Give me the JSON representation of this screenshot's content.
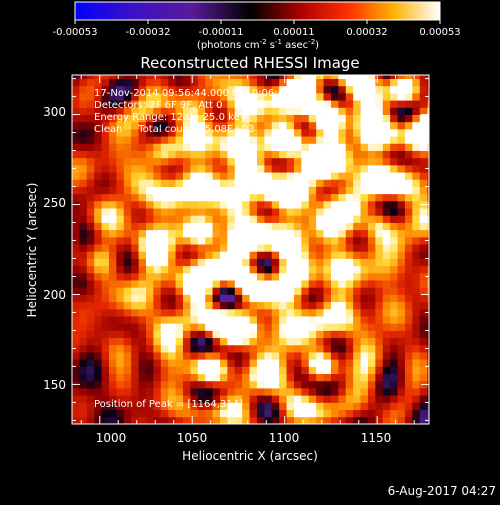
{
  "colorbar": {
    "ticks": [
      "-0.00053",
      "-0.00032",
      "-0.00011",
      "0.00011",
      "0.00032",
      "0.00053"
    ],
    "units_prefix": "(photons cm",
    "units_exp1": "-2",
    "units_mid": " s",
    "units_exp2": "-1",
    "units_mid2": " asec",
    "units_exp3": "-2",
    "units_suffix": ")"
  },
  "info": {
    "line1": "17-Nov-2014 09:56:44.000 to 10:06:44.000",
    "line2": "Detectors: 3F 6F 9F, Att 0",
    "line3": "Energy Range: 12.0 - 25.0 keV",
    "line4": "Clean     Total counts: 5.08E+03",
    "peak": "Position of Peak = [1164,314]"
  },
  "footer": {
    "date": "6-Aug-2017 04:27"
  },
  "colors": {
    "background": "#000000",
    "text": "#ffffff"
  },
  "chart_data": {
    "type": "heatmap",
    "title": "Reconstructed RHESSI Image",
    "xlabel": "Heliocentric X (arcsec)",
    "ylabel": "Heliocentric Y (arcsec)",
    "xlim": [
      985,
      1178
    ],
    "ylim": [
      128,
      322
    ],
    "xticks": [
      1000,
      1050,
      1100,
      1150
    ],
    "yticks": [
      150,
      200,
      250,
      300
    ],
    "colormap": "blue-purple-black-red-orange-yellow-white",
    "value_range": [
      -0.00053,
      0.00053
    ],
    "peak": [
      1164,
      314
    ]
  }
}
